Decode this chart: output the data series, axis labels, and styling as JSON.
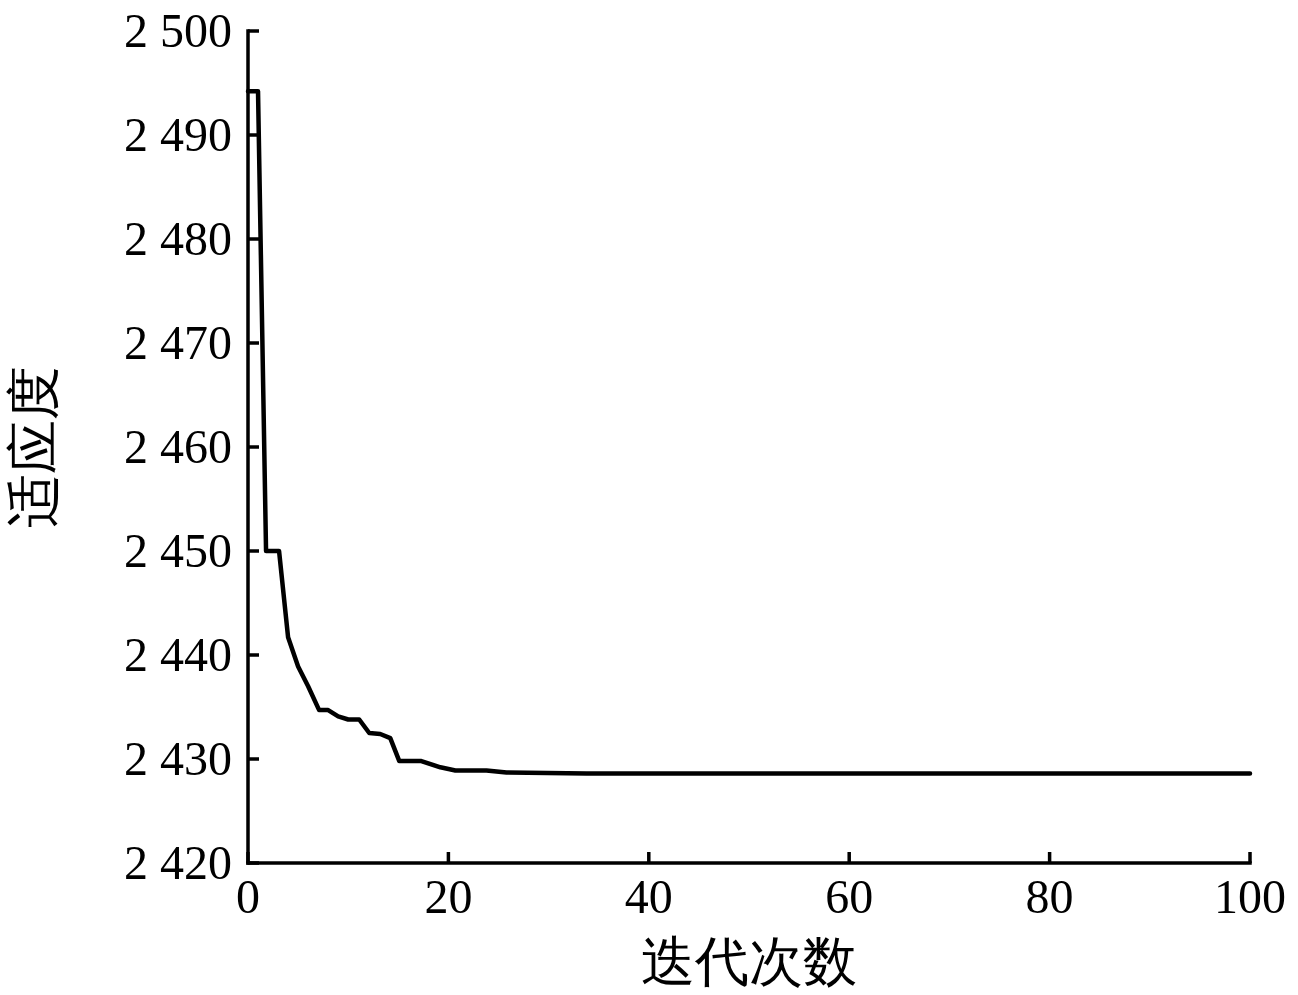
{
  "chart_data": {
    "type": "line",
    "xlabel": "迭代次数",
    "ylabel": "适应度",
    "x": [
      0,
      1,
      1.8,
      3.1,
      4,
      5,
      6,
      7.1,
      8,
      9,
      10,
      11.1,
      12.1,
      13.2,
      14.2,
      15.1,
      17.3,
      19.2,
      20.7,
      23.8,
      25.8,
      33.8,
      100
    ],
    "series": [
      {
        "color": "#000000",
        "values": [
          2494.2,
          2494.2,
          2450.0,
          2450.0,
          2441.7,
          2438.9,
          2437.0,
          2434.7,
          2434.7,
          2434.1,
          2433.8,
          2433.8,
          2432.5,
          2432.4,
          2432.0,
          2429.8,
          2429.8,
          2429.2,
          2428.9,
          2428.9,
          2428.7,
          2428.6,
          2428.6
        ]
      }
    ],
    "xlim": [
      0,
      100
    ],
    "ylim": [
      2420,
      2500
    ],
    "xticks": [
      0,
      20,
      40,
      60,
      80,
      100
    ],
    "yticks": [
      {
        "value": 2420,
        "label": "2 420"
      },
      {
        "value": 2430,
        "label": "2 430"
      },
      {
        "value": 2440,
        "label": "2 440"
      },
      {
        "value": 2450,
        "label": "2 450"
      },
      {
        "value": 2460,
        "label": "2 460"
      },
      {
        "value": 2470,
        "label": "2 470"
      },
      {
        "value": 2480,
        "label": "2 480"
      },
      {
        "value": 2490,
        "label": "2 490"
      },
      {
        "value": 2500,
        "label": "2 500"
      }
    ],
    "line_style": "solid"
  }
}
